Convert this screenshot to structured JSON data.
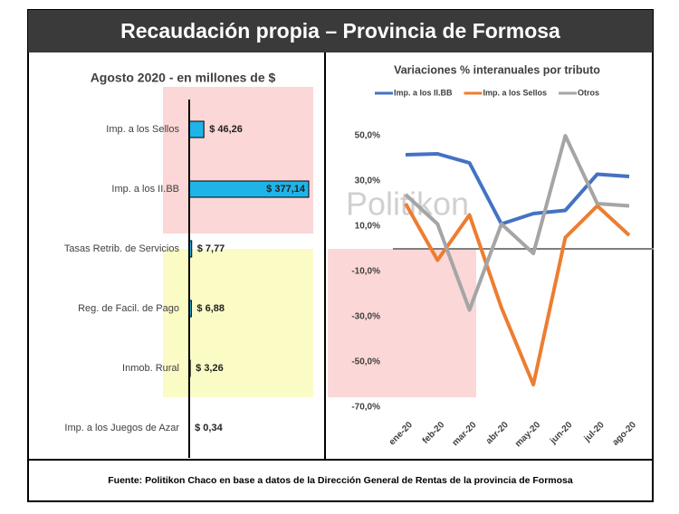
{
  "header": {
    "title": "Recaudación propia – Provincia de Formosa"
  },
  "footer": {
    "source": "Fuente: Politikon Chaco en base a datos de la Dirección General de Rentas de la provincia de Formosa"
  },
  "watermark": "Politikon",
  "chart_data": [
    {
      "type": "hbar",
      "title": "Agosto 2020 - en millones de $",
      "categories": [
        "Imp. a los Sellos",
        "Imp. a los II.BB",
        "Tasas Retrib. de Servicios",
        "Reg. de Facil. de Pago",
        "Inmob. Rural",
        "Imp. a los Juegos de Azar"
      ],
      "values": [
        46.26,
        377.14,
        7.77,
        6.88,
        3.26,
        0.34
      ],
      "value_labels": [
        "$ 46,26",
        "$ 377,14",
        "$ 7,77",
        "$ 6,88",
        "$ 3,26",
        "$ 0,34"
      ],
      "color": "#1fb4e8"
    },
    {
      "type": "line",
      "title": "Variaciones % interanuales por tributo",
      "categories": [
        "ene-20",
        "feb-20",
        "mar-20",
        "abr-20",
        "may-20",
        "jun-20",
        "jul-20",
        "ago-20"
      ],
      "series": [
        {
          "name": "Imp. a los II.BB",
          "color": "#4472c4",
          "values": [
            41.6,
            42,
            38,
            11,
            15.6,
            17,
            33,
            32
          ]
        },
        {
          "name": "Imp. a los Sellos",
          "color": "#ed7d31",
          "values": [
            20,
            -5,
            15,
            -26,
            -60,
            5,
            19,
            6
          ]
        },
        {
          "name": "Otros",
          "color": "#a5a5a5",
          "values": [
            24,
            11,
            -27,
            11,
            -2,
            50,
            20,
            19
          ]
        }
      ],
      "ylim": [
        -70,
        50
      ],
      "yticks": [
        {
          "value": 50,
          "label": "50,0%"
        },
        {
          "value": 30,
          "label": "30,0%"
        },
        {
          "value": 10,
          "label": "10,0%"
        },
        {
          "value": -10,
          "label": "-10,0%"
        },
        {
          "value": -30,
          "label": "-30,0%"
        },
        {
          "value": -50,
          "label": "-50,0%"
        },
        {
          "value": -70,
          "label": "-70,0%"
        }
      ],
      "legend": "top"
    }
  ]
}
